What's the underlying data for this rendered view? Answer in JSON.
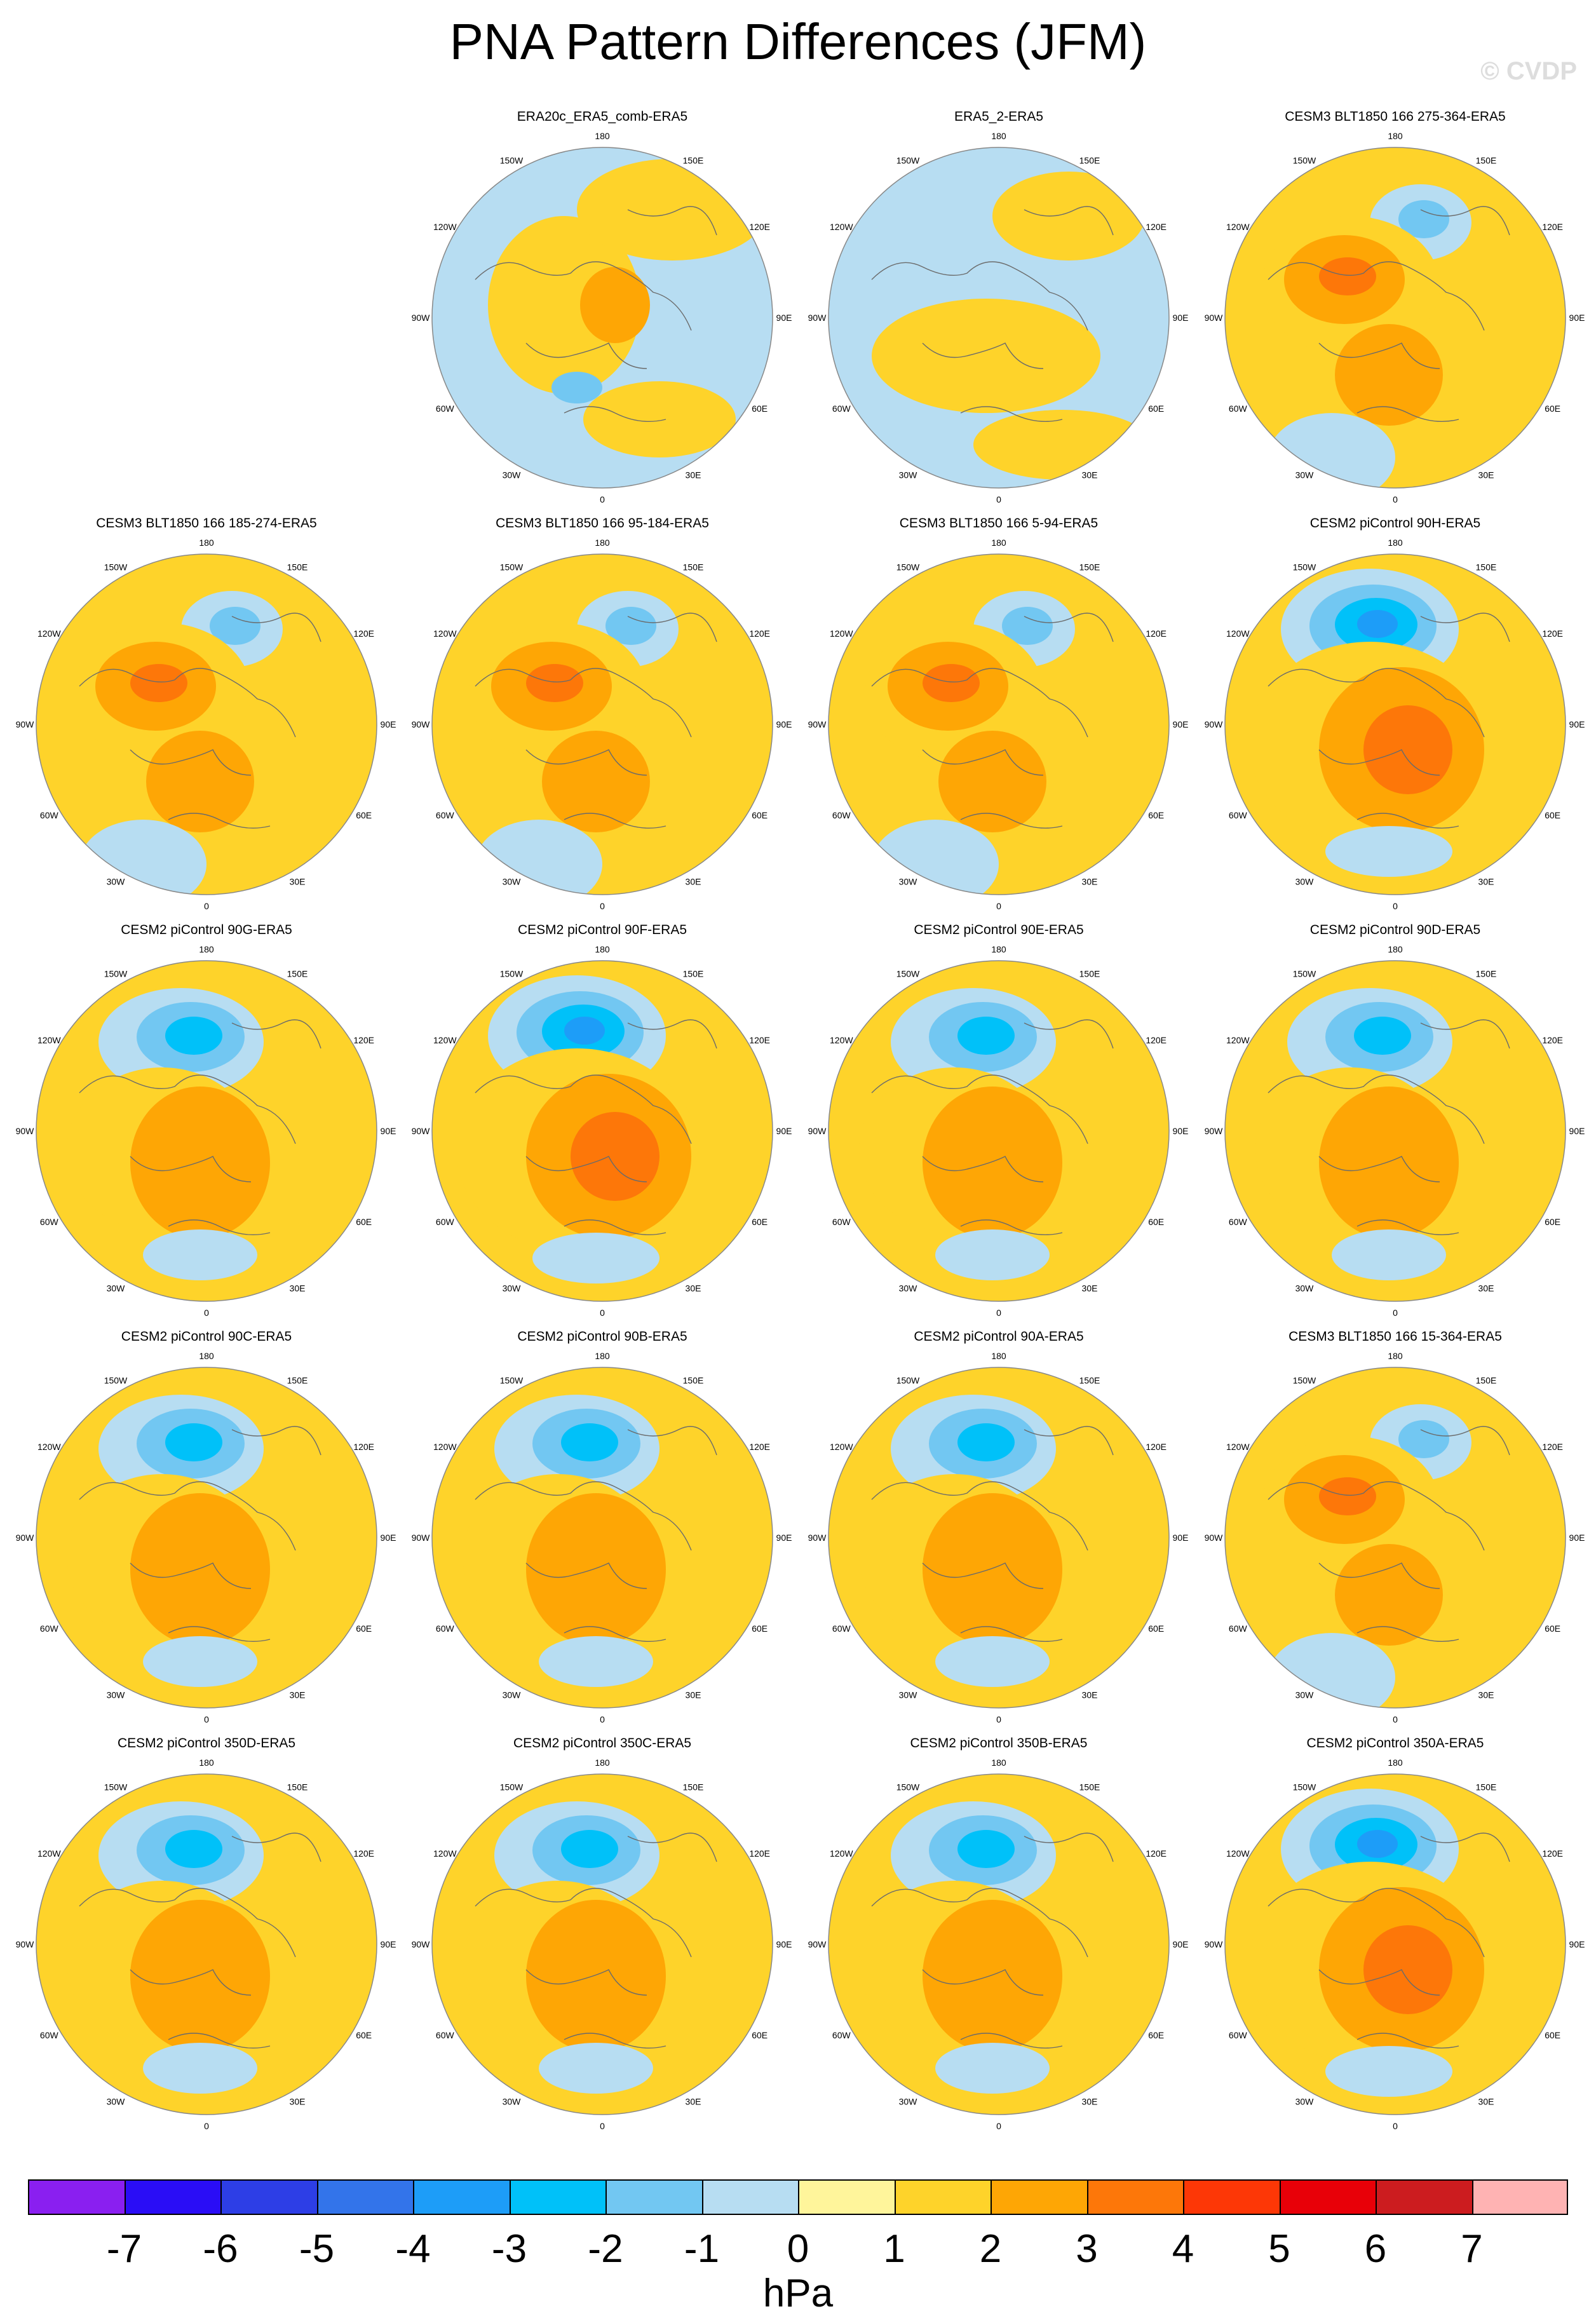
{
  "title": "PNA Pattern Differences (JFM)",
  "watermark": "© CVDP",
  "units": "hPa",
  "colorbar": {
    "labels": [
      "-7",
      "-6",
      "-5",
      "-4",
      "-3",
      "-2",
      "-1",
      "0",
      "1",
      "2",
      "3",
      "4",
      "5",
      "6",
      "7"
    ],
    "colors": [
      "#8a1ff0",
      "#2a0df6",
      "#2d3ee6",
      "#3374ea",
      "#1d9df8",
      "#00c1f9",
      "#72c7f2",
      "#b7ddf2",
      "#fff59b",
      "#fed32a",
      "#fea605",
      "#fd7709",
      "#fd3706",
      "#e80008",
      "#cc1c1f",
      "#ffb3b3"
    ]
  },
  "map_labels": {
    "top": "180",
    "bottom": "0",
    "left_upper": "150W",
    "right_upper": "150E",
    "left_mid_upper": "120W",
    "right_mid_upper": "120E",
    "left_mid": "90W",
    "right_mid": "90E",
    "left_mid_lower": "60W",
    "right_mid_lower": "60E",
    "left_lower": "30W",
    "right_lower": "30E"
  },
  "panels": [
    {
      "title": "ERA20c_ERA5_comb-ERA5",
      "pattern": "weak_mixed"
    },
    {
      "title": "ERA5_2-ERA5",
      "pattern": "near_zero"
    },
    {
      "title": "CESM3 BLT1850 166 275-364-ERA5",
      "pattern": "blt"
    },
    {
      "title": "CESM3 BLT1850 166 185-274-ERA5",
      "pattern": "blt"
    },
    {
      "title": "CESM3 BLT1850 166 95-184-ERA5",
      "pattern": "blt"
    },
    {
      "title": "CESM3 BLT1850 166 5-94-ERA5",
      "pattern": "blt"
    },
    {
      "title": "CESM2 piControl 90H-ERA5",
      "pattern": "pna_strong"
    },
    {
      "title": "CESM2 piControl 90G-ERA5",
      "pattern": "pna"
    },
    {
      "title": "CESM2 piControl 90F-ERA5",
      "pattern": "pna_strong"
    },
    {
      "title": "CESM2 piControl 90E-ERA5",
      "pattern": "pna"
    },
    {
      "title": "CESM2 piControl 90D-ERA5",
      "pattern": "pna"
    },
    {
      "title": "CESM2 piControl 90C-ERA5",
      "pattern": "pna"
    },
    {
      "title": "CESM2 piControl 90B-ERA5",
      "pattern": "pna"
    },
    {
      "title": "CESM2 piControl 90A-ERA5",
      "pattern": "pna"
    },
    {
      "title": "CESM3 BLT1850 166 15-364-ERA5",
      "pattern": "blt"
    },
    {
      "title": "CESM2 piControl 350D-ERA5",
      "pattern": "pna"
    },
    {
      "title": "CESM2 piControl 350C-ERA5",
      "pattern": "pna"
    },
    {
      "title": "CESM2 piControl 350B-ERA5",
      "pattern": "pna"
    },
    {
      "title": "CESM2 piControl 350A-ERA5",
      "pattern": "pna_strong"
    }
  ]
}
